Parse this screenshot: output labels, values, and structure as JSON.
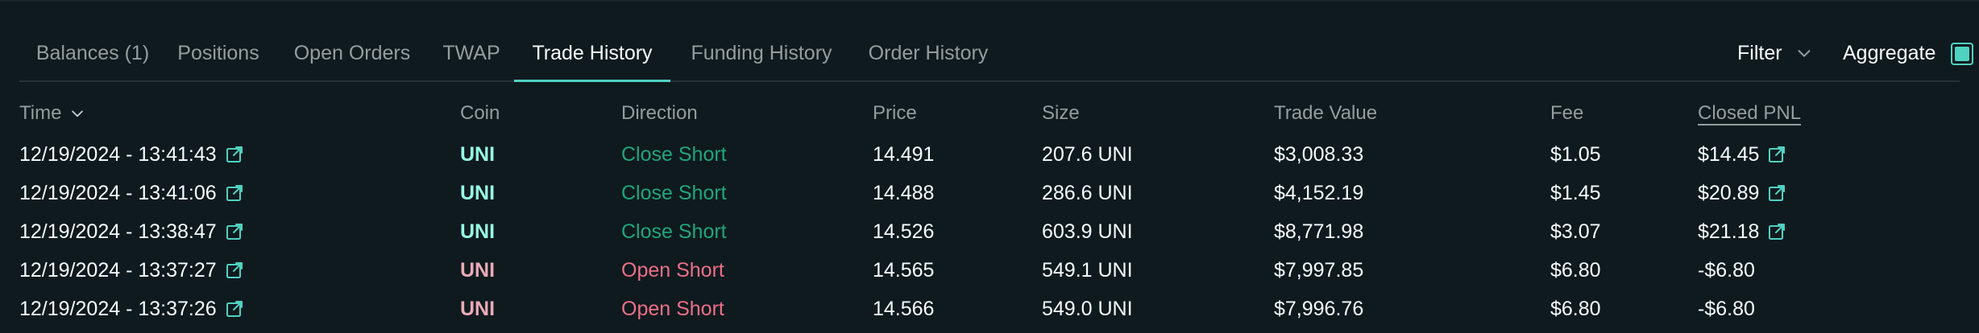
{
  "tabs": [
    {
      "label": "Balances (1)",
      "active": false
    },
    {
      "label": "Positions",
      "active": false
    },
    {
      "label": "Open Orders",
      "active": false
    },
    {
      "label": "TWAP",
      "active": false
    },
    {
      "label": "Trade History",
      "active": true
    },
    {
      "label": "Funding History",
      "active": false
    },
    {
      "label": "Order History",
      "active": false
    }
  ],
  "toolbar": {
    "filter_label": "Filter",
    "aggregate_label": "Aggregate",
    "aggregate_checked": true
  },
  "columns": {
    "time": "Time",
    "coin": "Coin",
    "direction": "Direction",
    "price": "Price",
    "size": "Size",
    "trade_value": "Trade Value",
    "fee": "Fee",
    "closed_pnl": "Closed PNL"
  },
  "rows": [
    {
      "time": "12/19/2024 - 13:41:43",
      "coin": "UNI",
      "direction": "Close Short",
      "price": "14.491",
      "size": "207.6 UNI",
      "trade_value": "$3,008.33",
      "fee": "$1.05",
      "closed_pnl": "$14.45",
      "pnl_link": true
    },
    {
      "time": "12/19/2024 - 13:41:06",
      "coin": "UNI",
      "direction": "Close Short",
      "price": "14.488",
      "size": "286.6 UNI",
      "trade_value": "$4,152.19",
      "fee": "$1.45",
      "closed_pnl": "$20.89",
      "pnl_link": true
    },
    {
      "time": "12/19/2024 - 13:38:47",
      "coin": "UNI",
      "direction": "Close Short",
      "price": "14.526",
      "size": "603.9 UNI",
      "trade_value": "$8,771.98",
      "fee": "$3.07",
      "closed_pnl": "$21.18",
      "pnl_link": true
    },
    {
      "time": "12/19/2024 - 13:37:27",
      "coin": "UNI",
      "direction": "Open Short",
      "price": "14.565",
      "size": "549.1 UNI",
      "trade_value": "$7,997.85",
      "fee": "$6.80",
      "closed_pnl": "-$6.80",
      "pnl_link": false
    },
    {
      "time": "12/19/2024 - 13:37:26",
      "coin": "UNI",
      "direction": "Open Short",
      "price": "14.566",
      "size": "549.0 UNI",
      "trade_value": "$7,996.76",
      "fee": "$6.80",
      "closed_pnl": "-$6.80",
      "pnl_link": false
    }
  ],
  "colors": {
    "accent": "#50d2c1",
    "close_short": "#1fa67d",
    "close_coin": "#97fce4",
    "open_short": "#ed7088",
    "open_coin": "#eaaab7",
    "muted": "#949e9c",
    "text": "#f6fefd"
  },
  "icons": {
    "sort": "chevron-down-icon",
    "filter": "chevron-down-icon",
    "link": "external-link-icon"
  }
}
